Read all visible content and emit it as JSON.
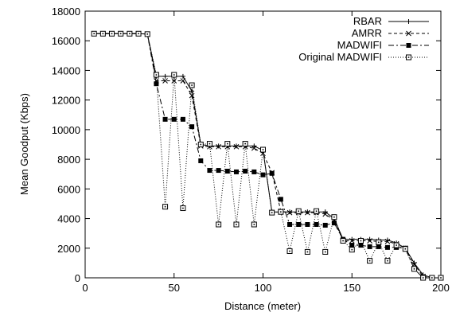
{
  "chart_data": {
    "type": "line",
    "title": "",
    "xlabel": "Distance (meter)",
    "ylabel": "Mean Goodput (Kbps)",
    "xlim": [
      0,
      200
    ],
    "ylim": [
      0,
      18000
    ],
    "xticks": [
      0,
      50,
      100,
      150,
      200
    ],
    "yticks": [
      0,
      2000,
      4000,
      6000,
      8000,
      10000,
      12000,
      14000,
      16000,
      18000
    ],
    "grid": false,
    "legend_position": "top-right",
    "x": [
      5,
      10,
      15,
      20,
      25,
      30,
      35,
      40,
      45,
      50,
      55,
      60,
      65,
      70,
      75,
      80,
      85,
      90,
      95,
      100,
      105,
      110,
      115,
      120,
      125,
      130,
      135,
      140,
      145,
      150,
      155,
      160,
      165,
      170,
      175,
      180,
      185,
      190,
      195,
      200
    ],
    "series": [
      {
        "name": "RBAR",
        "line": "solid",
        "marker": "plus",
        "values": [
          16480,
          16480,
          16480,
          16480,
          16480,
          16480,
          16450,
          13600,
          13600,
          13600,
          13600,
          12600,
          9000,
          8900,
          8900,
          8900,
          8900,
          8900,
          8900,
          8600,
          4450,
          4450,
          4450,
          4450,
          4450,
          4450,
          4450,
          4000,
          2600,
          2600,
          2600,
          2600,
          2550,
          2550,
          2350,
          2000,
          1000,
          200,
          0,
          0
        ]
      },
      {
        "name": "AMRR",
        "line": "dashed",
        "marker": "x",
        "values": [
          16480,
          16480,
          16480,
          16480,
          16480,
          16480,
          16450,
          13300,
          13300,
          13300,
          13300,
          12300,
          8900,
          8850,
          8850,
          8850,
          8850,
          8850,
          8750,
          8400,
          7100,
          4500,
          4400,
          4400,
          4400,
          4400,
          4300,
          3900,
          2500,
          2500,
          2500,
          2500,
          2450,
          2450,
          2300,
          2000,
          900,
          100,
          0,
          0
        ]
      },
      {
        "name": "MADWIFI",
        "line": "dashdot",
        "marker": "filled-square",
        "values": [
          16480,
          16480,
          16480,
          16480,
          16480,
          16480,
          16450,
          13100,
          10700,
          10700,
          10700,
          10200,
          7900,
          7250,
          7250,
          7200,
          7150,
          7200,
          7150,
          6950,
          7050,
          5300,
          3600,
          3600,
          3600,
          3600,
          3550,
          3700,
          2600,
          2200,
          2200,
          2100,
          2100,
          2050,
          2050,
          2000,
          600,
          0,
          0,
          0
        ]
      },
      {
        "name": "Original MADWIFI",
        "line": "dotted",
        "marker": "open-square",
        "values": [
          16480,
          16480,
          16480,
          16480,
          16480,
          16480,
          16450,
          13700,
          4800,
          13700,
          4700,
          13000,
          9000,
          9050,
          3600,
          9050,
          3600,
          9050,
          3600,
          8650,
          4400,
          4450,
          1800,
          4500,
          1750,
          4500,
          1750,
          4100,
          2500,
          1900,
          2500,
          1150,
          2400,
          1150,
          2200,
          1950,
          600,
          0,
          0,
          0
        ]
      }
    ]
  }
}
